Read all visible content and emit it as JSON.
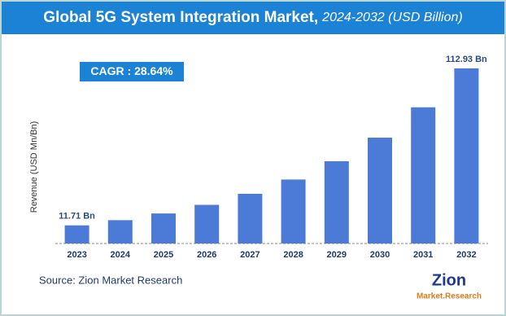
{
  "chart_data": {
    "type": "bar",
    "title": "Global 5G System Integration Market,",
    "subtitle": "2024-2032 (USD Billion)",
    "y_label": "Revenue (USD Mn/Bn)",
    "annotations": [
      "CAGR : 28.64%"
    ],
    "source": "Source: Zion Market Research",
    "logo": [
      "Zion",
      "Market.Research"
    ],
    "categories": [
      "2023",
      "2024",
      "2025",
      "2026",
      "2027",
      "2028",
      "2029",
      "2030",
      "2031",
      "2032"
    ],
    "values": [
      11.71,
      15.06,
      19.38,
      24.93,
      32.07,
      41.26,
      53.07,
      68.27,
      87.83,
      112.93
    ],
    "value_labels": [
      "11.71 Bn",
      null,
      null,
      null,
      null,
      null,
      null,
      null,
      null,
      "112.93 Bn"
    ],
    "color": "#4b7bd6",
    "ylim": [
      0,
      115
    ]
  }
}
